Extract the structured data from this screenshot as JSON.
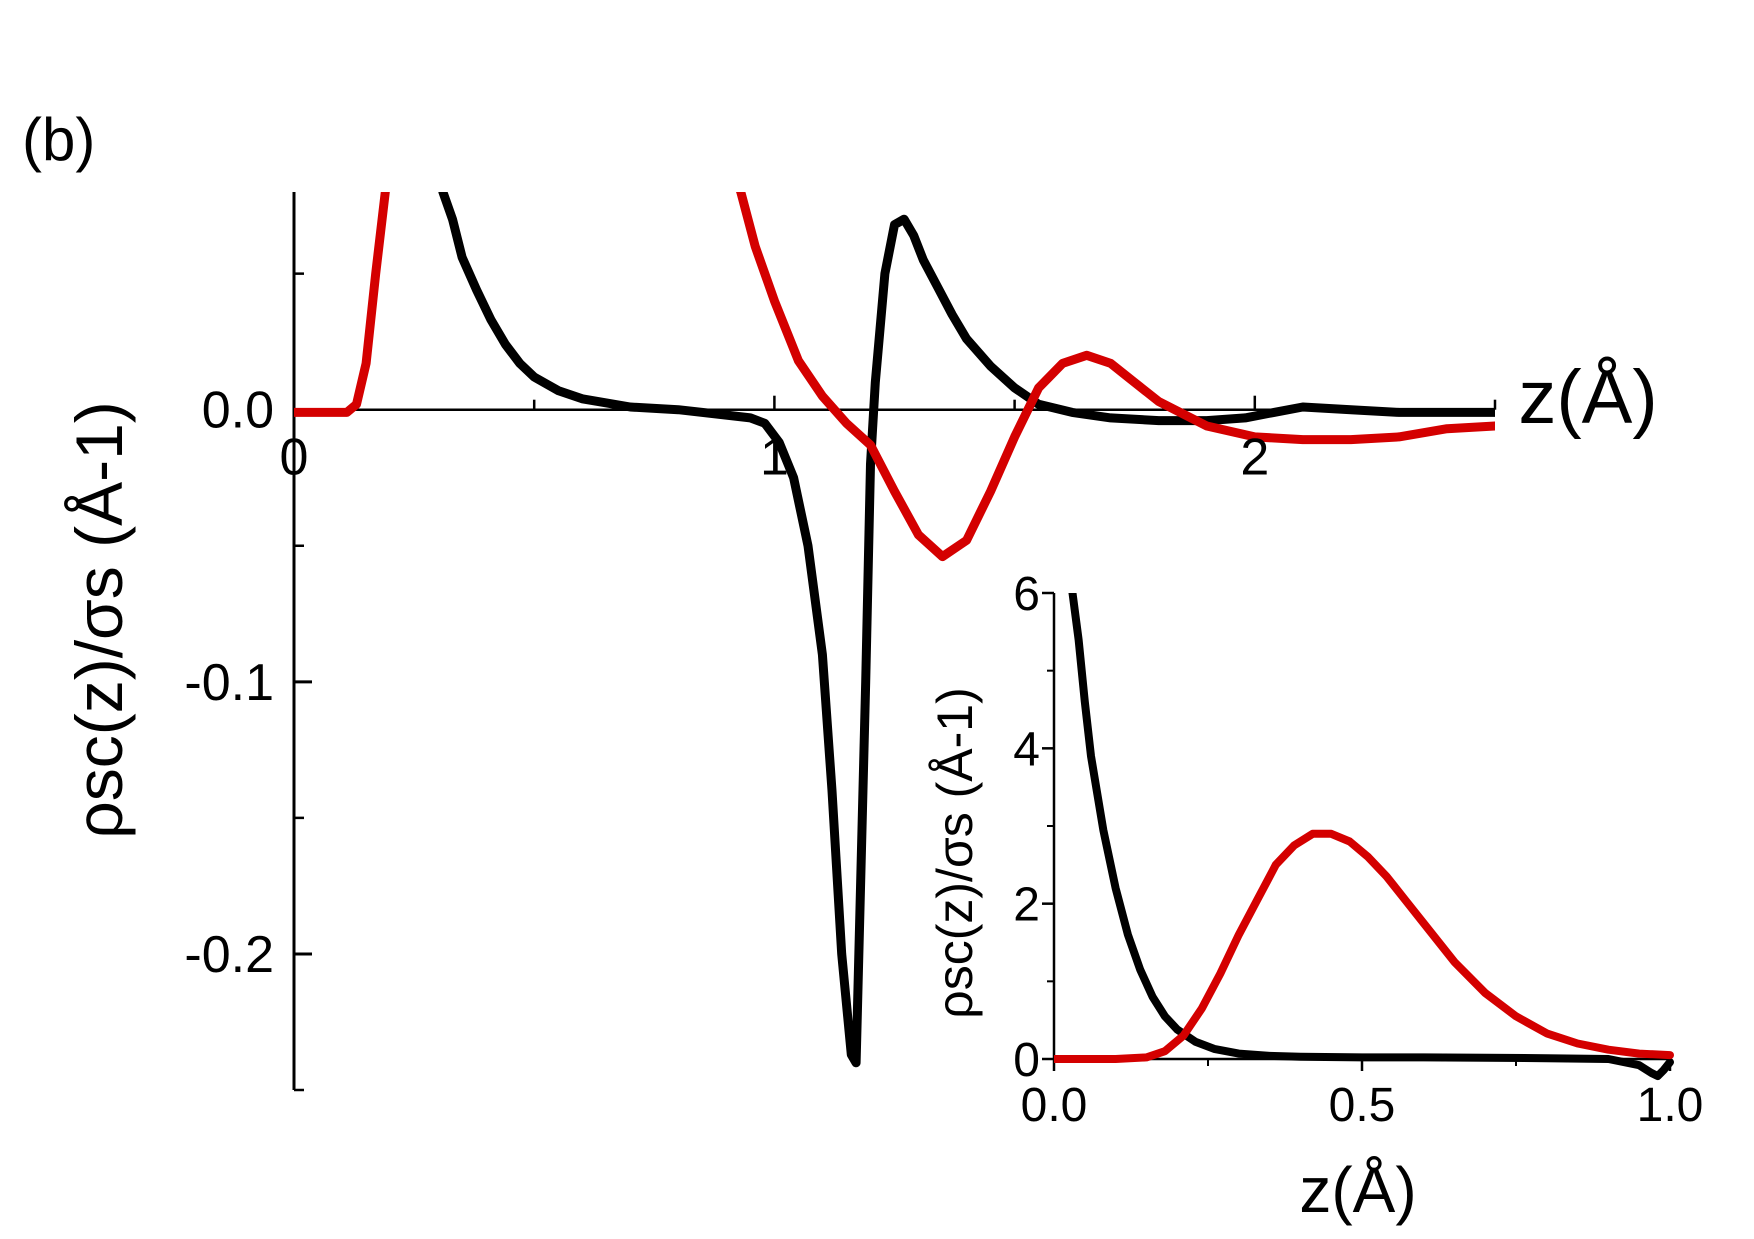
{
  "panel_label": "(b)",
  "colors": {
    "series_black": "#000000",
    "series_red": "#d40000"
  },
  "chart_data": [
    {
      "type": "line",
      "xlabel": "z(Å)",
      "ylabel": "ρsc(z)/σs (Å-1)",
      "xlim": [
        0,
        2.5
      ],
      "ylim": [
        -0.25,
        0.08
      ],
      "x_ticks": [
        "0",
        "1",
        "2"
      ],
      "y_ticks": [
        "0.0",
        "-0.1",
        "-0.2"
      ],
      "grid": false,
      "legend": "none",
      "series": [
        {
          "color": "#000000",
          "x": [
            0.31,
            0.33,
            0.35,
            0.38,
            0.41,
            0.44,
            0.47,
            0.5,
            0.55,
            0.6,
            0.7,
            0.8,
            0.9,
            0.95,
            0.98,
            1.01,
            1.04,
            1.07,
            1.1,
            1.12,
            1.14,
            1.16,
            1.17,
            1.19,
            1.2,
            1.21,
            1.22,
            1.23,
            1.25,
            1.27,
            1.29,
            1.31,
            1.34,
            1.37,
            1.4,
            1.45,
            1.5,
            1.55,
            1.62,
            1.7,
            1.8,
            1.9,
            1.98,
            2.04,
            2.1,
            2.2,
            2.3,
            2.4,
            2.5
          ],
          "y": [
            0.08,
            0.07,
            0.056,
            0.044,
            0.033,
            0.024,
            0.017,
            0.012,
            0.007,
            0.004,
            0.001,
            0.0,
            -0.002,
            -0.003,
            -0.005,
            -0.012,
            -0.025,
            -0.05,
            -0.09,
            -0.14,
            -0.2,
            -0.237,
            -0.24,
            -0.1,
            -0.02,
            0.01,
            0.03,
            0.05,
            0.068,
            0.07,
            0.064,
            0.055,
            0.045,
            0.035,
            0.026,
            0.016,
            0.008,
            0.002,
            -0.001,
            -0.003,
            -0.004,
            -0.004,
            -0.003,
            -0.001,
            0.001,
            0.0,
            -0.001,
            -0.001,
            -0.001
          ]
        },
        {
          "color": "#d40000",
          "x": [
            0.0,
            0.05,
            0.11,
            0.13,
            0.15,
            0.17,
            0.19,
            0.2,
            0.9,
            0.93,
            0.96,
            1.0,
            1.05,
            1.1,
            1.15,
            1.2,
            1.25,
            1.3,
            1.35,
            1.4,
            1.45,
            1.5,
            1.55,
            1.6,
            1.65,
            1.7,
            1.75,
            1.8,
            1.9,
            2.0,
            2.1,
            2.2,
            2.3,
            2.4,
            2.5
          ],
          "y": [
            -0.001,
            -0.001,
            -0.001,
            0.002,
            0.017,
            0.05,
            0.08,
            0.095,
            0.095,
            0.08,
            0.06,
            0.04,
            0.018,
            0.005,
            -0.005,
            -0.013,
            -0.03,
            -0.046,
            -0.054,
            -0.048,
            -0.03,
            -0.01,
            0.008,
            0.017,
            0.02,
            0.017,
            0.01,
            0.003,
            -0.006,
            -0.01,
            -0.011,
            -0.011,
            -0.01,
            -0.007,
            -0.006
          ]
        }
      ]
    },
    {
      "type": "line",
      "xlabel": "z(Å)",
      "ylabel": "ρsc(z)/σs (Å-1)",
      "xlim": [
        0,
        1.0
      ],
      "ylim": [
        0,
        6
      ],
      "x_ticks": [
        "0.0",
        "0.5",
        "1.0"
      ],
      "y_ticks": [
        "0",
        "2",
        "4",
        "6"
      ],
      "grid": false,
      "legend": "none",
      "series": [
        {
          "color": "#000000",
          "x": [
            0.03,
            0.04,
            0.05,
            0.06,
            0.08,
            0.1,
            0.12,
            0.14,
            0.16,
            0.18,
            0.2,
            0.23,
            0.26,
            0.3,
            0.35,
            0.4,
            0.5,
            0.6,
            0.7,
            0.8,
            0.9,
            0.95,
            0.97,
            0.98,
            0.99,
            1.0
          ],
          "y": [
            6.0,
            5.4,
            4.6,
            3.9,
            2.95,
            2.2,
            1.6,
            1.15,
            0.8,
            0.55,
            0.38,
            0.22,
            0.13,
            0.07,
            0.04,
            0.03,
            0.02,
            0.02,
            0.015,
            0.01,
            0.0,
            -0.08,
            -0.18,
            -0.22,
            -0.14,
            -0.04
          ]
        },
        {
          "color": "#d40000",
          "x": [
            0.0,
            0.1,
            0.15,
            0.18,
            0.21,
            0.24,
            0.27,
            0.3,
            0.33,
            0.36,
            0.39,
            0.42,
            0.45,
            0.48,
            0.51,
            0.54,
            0.57,
            0.6,
            0.65,
            0.7,
            0.75,
            0.8,
            0.85,
            0.9,
            0.95,
            1.0
          ],
          "y": [
            0.0,
            0.0,
            0.02,
            0.1,
            0.3,
            0.65,
            1.1,
            1.6,
            2.05,
            2.5,
            2.75,
            2.9,
            2.9,
            2.8,
            2.6,
            2.35,
            2.05,
            1.75,
            1.25,
            0.85,
            0.55,
            0.33,
            0.2,
            0.12,
            0.07,
            0.05
          ]
        }
      ]
    }
  ]
}
